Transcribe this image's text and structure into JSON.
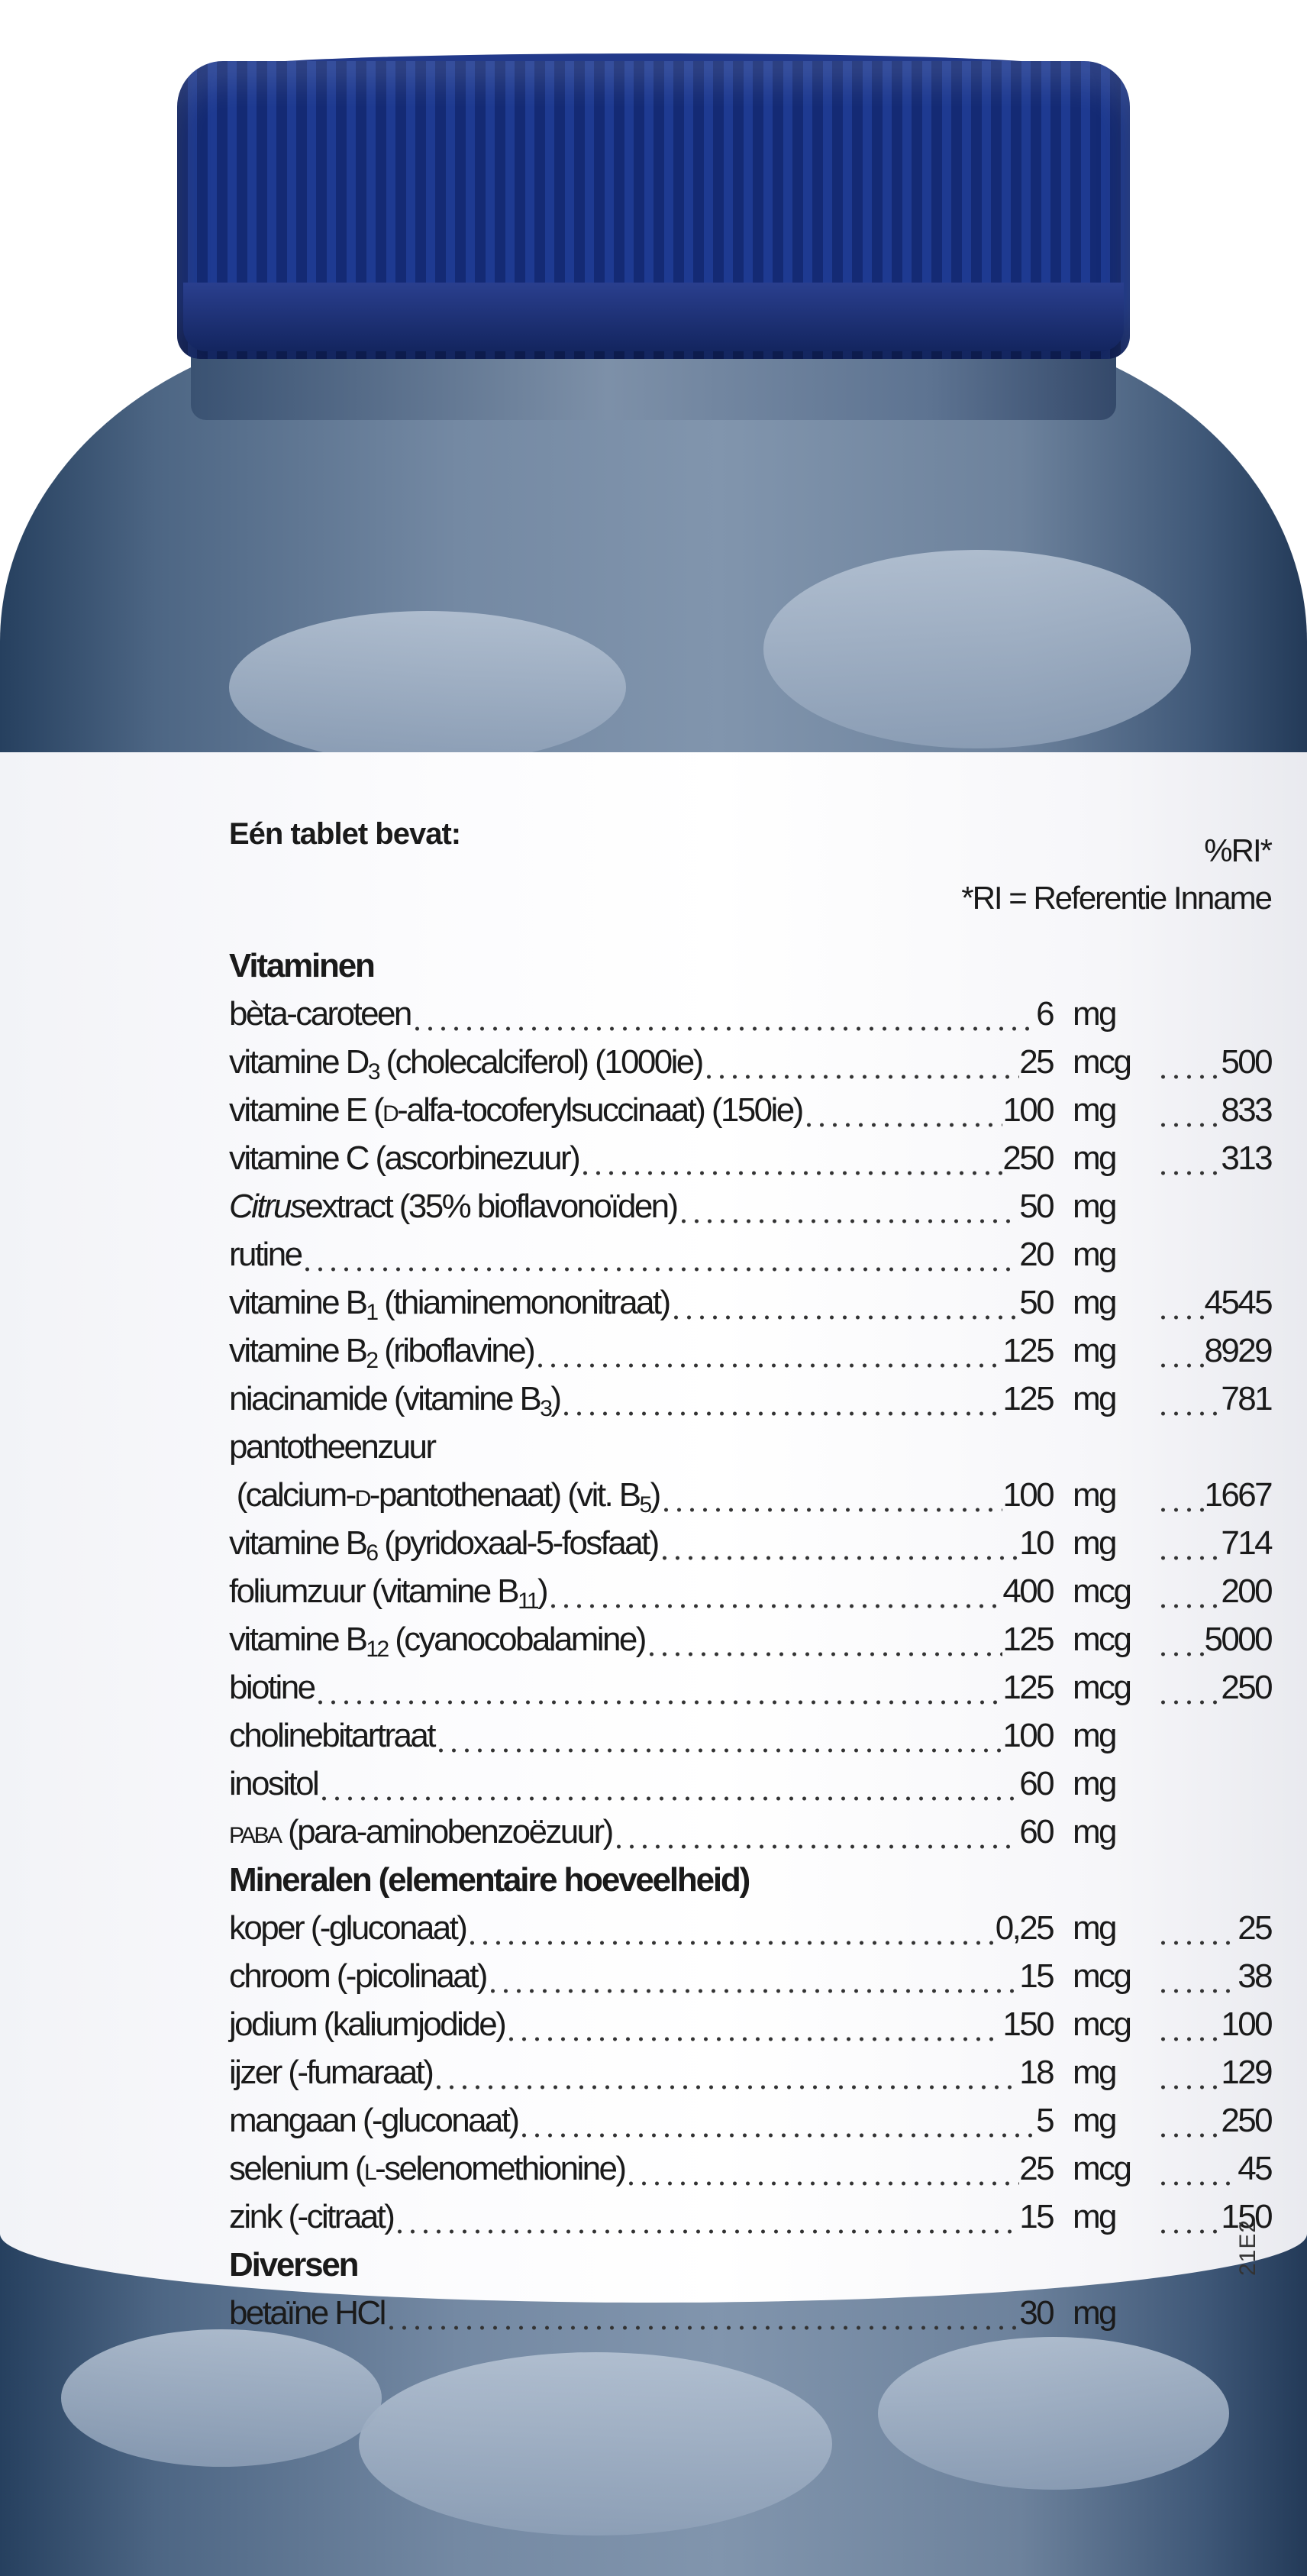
{
  "colors": {
    "cap": "#1e3a91",
    "bottle": "#5d7391",
    "label": "#ffffff",
    "text": "#1a1a1a"
  },
  "label": {
    "title": "Eén tablet bevat:",
    "ri_header": "%RI*",
    "ri_note": "*RI = Referentie Inname",
    "code": "21E2",
    "rows": [
      {
        "section": true,
        "parts": [
          {
            "t": "Vitaminen"
          }
        ]
      },
      {
        "parts": [
          {
            "t": "bèta-caroteen"
          }
        ],
        "amount": "6",
        "unit": "mg",
        "ri": ""
      },
      {
        "parts": [
          {
            "t": "vitamine D"
          },
          {
            "t": "3",
            "s": "sub"
          },
          {
            "t": " (cholecalciferol) (1000ie)"
          }
        ],
        "amount": "25",
        "unit": "mcg",
        "ri": "500"
      },
      {
        "parts": [
          {
            "t": "vitamine E ("
          },
          {
            "t": "D",
            "s": "sc"
          },
          {
            "t": "-alfa-tocoferylsuccinaat) (150ie)"
          }
        ],
        "amount": "100",
        "unit": "mg",
        "ri": "833"
      },
      {
        "parts": [
          {
            "t": "vitamine C (ascorbinezuur)"
          }
        ],
        "amount": "250",
        "unit": "mg",
        "ri": "313"
      },
      {
        "parts": [
          {
            "t": "Citrus",
            "s": "it"
          },
          {
            "t": "extract (35% bioflavonoïden)"
          }
        ],
        "amount": "50",
        "unit": "mg",
        "ri": ""
      },
      {
        "parts": [
          {
            "t": "rutine"
          }
        ],
        "amount": "20",
        "unit": "mg",
        "ri": ""
      },
      {
        "parts": [
          {
            "t": "vitamine B"
          },
          {
            "t": "1",
            "s": "sub"
          },
          {
            "t": " (thiaminemononitraat)"
          }
        ],
        "amount": "50",
        "unit": "mg",
        "ri": "4545"
      },
      {
        "parts": [
          {
            "t": "vitamine B"
          },
          {
            "t": "2",
            "s": "sub"
          },
          {
            "t": " (riboflavine)"
          }
        ],
        "amount": "125",
        "unit": "mg",
        "ri": "8929"
      },
      {
        "parts": [
          {
            "t": "niacinamide (vitamine B"
          },
          {
            "t": "3",
            "s": "sub"
          },
          {
            "t": ")"
          }
        ],
        "amount": "125",
        "unit": "mg",
        "ri": "781"
      },
      {
        "plain": true,
        "parts": [
          {
            "t": "pantotheenzuur"
          }
        ]
      },
      {
        "parts": [
          {
            "t": " (calcium-"
          },
          {
            "t": "D",
            "s": "sc"
          },
          {
            "t": "-pantothenaat) (vit. B"
          },
          {
            "t": "5",
            "s": "sub"
          },
          {
            "t": ")"
          }
        ],
        "amount": "100",
        "unit": "mg",
        "ri": "1667"
      },
      {
        "parts": [
          {
            "t": "vitamine B"
          },
          {
            "t": "6",
            "s": "sub"
          },
          {
            "t": " (pyridoxaal-5-fosfaat)"
          }
        ],
        "amount": "10",
        "unit": "mg",
        "ri": "714"
      },
      {
        "parts": [
          {
            "t": "foliumzuur (vitamine B"
          },
          {
            "t": "11",
            "s": "sub"
          },
          {
            "t": ")"
          }
        ],
        "amount": "400",
        "unit": "mcg",
        "ri": "200"
      },
      {
        "parts": [
          {
            "t": "vitamine B"
          },
          {
            "t": "12",
            "s": "sub"
          },
          {
            "t": " (cyanocobalamine)"
          }
        ],
        "amount": "125",
        "unit": "mcg",
        "ri": "5000"
      },
      {
        "parts": [
          {
            "t": "biotine"
          }
        ],
        "amount": "125",
        "unit": "mcg",
        "ri": "250"
      },
      {
        "parts": [
          {
            "t": "cholinebitartraat"
          }
        ],
        "amount": "100",
        "unit": "mg",
        "ri": ""
      },
      {
        "parts": [
          {
            "t": "inositol"
          }
        ],
        "amount": "60",
        "unit": "mg",
        "ri": ""
      },
      {
        "parts": [
          {
            "t": "PABA",
            "s": "sc"
          },
          {
            "t": " (para-aminobenzoëzuur)"
          }
        ],
        "amount": "60",
        "unit": "mg",
        "ri": ""
      },
      {
        "section": true,
        "parts": [
          {
            "t": "Mineralen (elementaire hoeveelheid)"
          }
        ]
      },
      {
        "parts": [
          {
            "t": "koper (-gluconaat)"
          }
        ],
        "amount": "0,25",
        "unit": "mg",
        "ri": "25"
      },
      {
        "parts": [
          {
            "t": "chroom (-picolinaat)"
          }
        ],
        "amount": "15",
        "unit": "mcg",
        "ri": "38"
      },
      {
        "parts": [
          {
            "t": "jodium (kaliumjodide)"
          }
        ],
        "amount": "150",
        "unit": "mcg",
        "ri": "100"
      },
      {
        "parts": [
          {
            "t": "ijzer (-fumaraat)"
          }
        ],
        "amount": "18",
        "unit": "mg",
        "ri": "129"
      },
      {
        "parts": [
          {
            "t": "mangaan (-gluconaat)"
          }
        ],
        "amount": "5",
        "unit": "mg",
        "ri": "250"
      },
      {
        "parts": [
          {
            "t": "selenium ("
          },
          {
            "t": "L",
            "s": "sc"
          },
          {
            "t": "-selenomethionine)"
          }
        ],
        "amount": "25",
        "unit": "mcg",
        "ri": "45"
      },
      {
        "parts": [
          {
            "t": "zink (-citraat)"
          }
        ],
        "amount": "15",
        "unit": "mg",
        "ri": "150"
      },
      {
        "section": true,
        "parts": [
          {
            "t": "Diversen"
          }
        ]
      },
      {
        "parts": [
          {
            "t": "betaïne HCl"
          }
        ],
        "amount": "30",
        "unit": "mg",
        "ri": ""
      }
    ]
  }
}
